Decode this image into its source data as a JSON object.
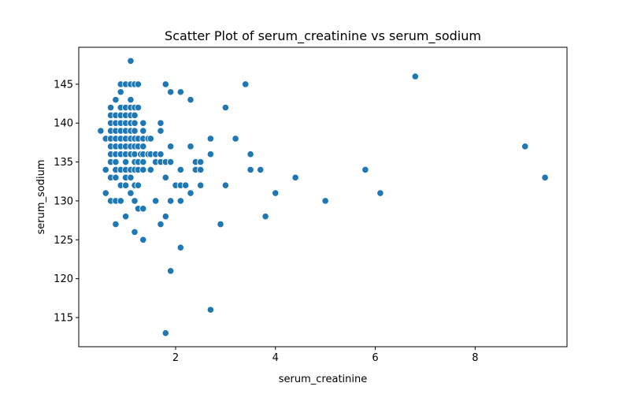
{
  "chart_data": {
    "type": "scatter",
    "title": "Scatter Plot of serum_creatinine vs serum_sodium",
    "xlabel": "serum_creatinine",
    "ylabel": "serum_sodium",
    "xlim": [
      0.06,
      9.84
    ],
    "ylim": [
      111.25,
      149.75
    ],
    "xticks": [
      2,
      4,
      6,
      8
    ],
    "yticks": [
      115,
      120,
      125,
      130,
      135,
      140,
      145
    ],
    "grid": false,
    "color": "#1f77b4",
    "points": [
      [
        0.5,
        139
      ],
      [
        0.6,
        131
      ],
      [
        0.6,
        134
      ],
      [
        0.6,
        138
      ],
      [
        0.7,
        130
      ],
      [
        0.7,
        133
      ],
      [
        0.7,
        135
      ],
      [
        0.7,
        136
      ],
      [
        0.7,
        137
      ],
      [
        0.7,
        138
      ],
      [
        0.7,
        139
      ],
      [
        0.7,
        140
      ],
      [
        0.7,
        141
      ],
      [
        0.7,
        142
      ],
      [
        0.8,
        127
      ],
      [
        0.8,
        130
      ],
      [
        0.8,
        133
      ],
      [
        0.8,
        134
      ],
      [
        0.8,
        135
      ],
      [
        0.8,
        136
      ],
      [
        0.8,
        137
      ],
      [
        0.8,
        138
      ],
      [
        0.8,
        139
      ],
      [
        0.8,
        140
      ],
      [
        0.8,
        141
      ],
      [
        0.8,
        143
      ],
      [
        0.9,
        130
      ],
      [
        0.9,
        132
      ],
      [
        0.9,
        134
      ],
      [
        0.9,
        136
      ],
      [
        0.9,
        137
      ],
      [
        0.9,
        138
      ],
      [
        0.9,
        139
      ],
      [
        0.9,
        140
      ],
      [
        0.9,
        141
      ],
      [
        0.9,
        142
      ],
      [
        0.9,
        144
      ],
      [
        0.9,
        145
      ],
      [
        1.0,
        128
      ],
      [
        1.0,
        132
      ],
      [
        1.0,
        133
      ],
      [
        1.0,
        134
      ],
      [
        1.0,
        135
      ],
      [
        1.0,
        136
      ],
      [
        1.0,
        137
      ],
      [
        1.0,
        138
      ],
      [
        1.0,
        139
      ],
      [
        1.0,
        140
      ],
      [
        1.0,
        141
      ],
      [
        1.0,
        142
      ],
      [
        1.0,
        145
      ],
      [
        1.1,
        131
      ],
      [
        1.1,
        133
      ],
      [
        1.1,
        134
      ],
      [
        1.1,
        136
      ],
      [
        1.1,
        137
      ],
      [
        1.1,
        138
      ],
      [
        1.1,
        139
      ],
      [
        1.1,
        140
      ],
      [
        1.1,
        141
      ],
      [
        1.1,
        142
      ],
      [
        1.1,
        143
      ],
      [
        1.1,
        145
      ],
      [
        1.1,
        148
      ],
      [
        1.18,
        126
      ],
      [
        1.18,
        130
      ],
      [
        1.18,
        132
      ],
      [
        1.18,
        134
      ],
      [
        1.18,
        135
      ],
      [
        1.18,
        136
      ],
      [
        1.18,
        137
      ],
      [
        1.18,
        138
      ],
      [
        1.18,
        139
      ],
      [
        1.18,
        140
      ],
      [
        1.18,
        141
      ],
      [
        1.18,
        142
      ],
      [
        1.18,
        145
      ],
      [
        1.25,
        129
      ],
      [
        1.25,
        132
      ],
      [
        1.25,
        134
      ],
      [
        1.25,
        135
      ],
      [
        1.25,
        137
      ],
      [
        1.25,
        138
      ],
      [
        1.25,
        142
      ],
      [
        1.25,
        145
      ],
      [
        1.3,
        136
      ],
      [
        1.35,
        125
      ],
      [
        1.35,
        129
      ],
      [
        1.35,
        134
      ],
      [
        1.35,
        135
      ],
      [
        1.35,
        136
      ],
      [
        1.35,
        137
      ],
      [
        1.35,
        138
      ],
      [
        1.35,
        139
      ],
      [
        1.35,
        140
      ],
      [
        1.45,
        136
      ],
      [
        1.45,
        138
      ],
      [
        1.5,
        134
      ],
      [
        1.5,
        136
      ],
      [
        1.5,
        138
      ],
      [
        1.6,
        130
      ],
      [
        1.6,
        135
      ],
      [
        1.6,
        136
      ],
      [
        1.7,
        127
      ],
      [
        1.7,
        135
      ],
      [
        1.7,
        136
      ],
      [
        1.7,
        139
      ],
      [
        1.7,
        140
      ],
      [
        1.8,
        113
      ],
      [
        1.8,
        128
      ],
      [
        1.8,
        133
      ],
      [
        1.8,
        135
      ],
      [
        1.8,
        145
      ],
      [
        1.9,
        121
      ],
      [
        1.9,
        130
      ],
      [
        1.9,
        135
      ],
      [
        1.9,
        137
      ],
      [
        1.9,
        144
      ],
      [
        2.0,
        132
      ],
      [
        2.1,
        124
      ],
      [
        2.1,
        130
      ],
      [
        2.1,
        132
      ],
      [
        2.1,
        134
      ],
      [
        2.1,
        144
      ],
      [
        2.2,
        132
      ],
      [
        2.3,
        131
      ],
      [
        2.3,
        137
      ],
      [
        2.3,
        143
      ],
      [
        2.4,
        134
      ],
      [
        2.4,
        135
      ],
      [
        2.5,
        132
      ],
      [
        2.5,
        134
      ],
      [
        2.5,
        135
      ],
      [
        2.7,
        116
      ],
      [
        2.7,
        136
      ],
      [
        2.7,
        138
      ],
      [
        2.9,
        127
      ],
      [
        3.0,
        132
      ],
      [
        3.0,
        142
      ],
      [
        3.2,
        138
      ],
      [
        3.4,
        145
      ],
      [
        3.5,
        134
      ],
      [
        3.5,
        136
      ],
      [
        3.7,
        134
      ],
      [
        3.8,
        128
      ],
      [
        4.0,
        131
      ],
      [
        4.4,
        133
      ],
      [
        5.0,
        130
      ],
      [
        5.8,
        134
      ],
      [
        6.1,
        131
      ],
      [
        6.8,
        146
      ],
      [
        9.0,
        137
      ],
      [
        9.4,
        133
      ]
    ]
  }
}
